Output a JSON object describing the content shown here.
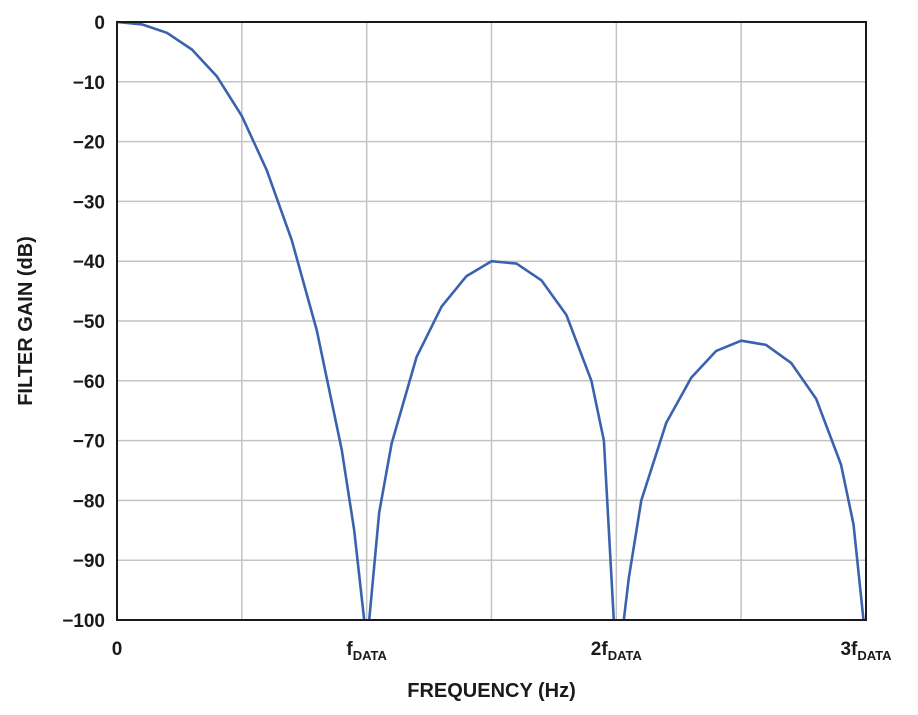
{
  "chart_data": {
    "type": "line",
    "xlabel": "FREQUENCY (Hz)",
    "ylabel": "FILTER GAIN (dB)",
    "xlim": [
      0,
      3
    ],
    "ylim": [
      -100,
      0
    ],
    "grid": true,
    "x_ticks": [
      {
        "value": 0,
        "main": "0",
        "sub": ""
      },
      {
        "value": 1,
        "main": "f",
        "sub": "DATA"
      },
      {
        "value": 2,
        "main": "2f",
        "sub": "DATA"
      },
      {
        "value": 3,
        "main": "3f",
        "sub": "DATA"
      }
    ],
    "y_ticks": [
      {
        "value": 0,
        "label": "0"
      },
      {
        "value": -10,
        "label": "−10"
      },
      {
        "value": -20,
        "label": "−20"
      },
      {
        "value": -30,
        "label": "−30"
      },
      {
        "value": -40,
        "label": "−40"
      },
      {
        "value": -50,
        "label": "−50"
      },
      {
        "value": -60,
        "label": "−60"
      },
      {
        "value": -70,
        "label": "−70"
      },
      {
        "value": -80,
        "label": "−80"
      },
      {
        "value": -90,
        "label": "−90"
      },
      {
        "value": -100,
        "label": "−100"
      }
    ],
    "series": [
      {
        "color": "#3a62ad",
        "segments": [
          {
            "x": [
              0,
              0.1,
              0.2,
              0.3,
              0.4,
              0.5,
              0.6,
              0.7,
              0.8,
              0.9,
              0.95,
              0.99
            ],
            "y": [
              0,
              -0.4,
              -1.8,
              -4.6,
              -9.1,
              -15.7,
              -24.8,
              -36.5,
              -51.5,
              -71.5,
              -85,
              -100
            ]
          },
          {
            "x": [
              1.01,
              1.05,
              1.1,
              1.2,
              1.3,
              1.4,
              1.5,
              1.6,
              1.7,
              1.8,
              1.9,
              1.95,
              1.99
            ],
            "y": [
              -100,
              -82,
              -70.5,
              -56,
              -47.6,
              -42.5,
              -40,
              -40.4,
              -43.2,
              -49,
              -60,
              -70,
              -100
            ]
          },
          {
            "x": [
              2.03,
              2.05,
              2.1,
              2.2,
              2.3,
              2.4,
              2.5,
              2.6,
              2.7,
              2.8,
              2.9,
              2.95,
              2.99
            ],
            "y": [
              -100,
              -93,
              -80,
              -67,
              -59.5,
              -55,
              -53.3,
              -54,
              -57,
              -63,
              -74,
              -84,
              -100
            ]
          }
        ]
      }
    ]
  }
}
